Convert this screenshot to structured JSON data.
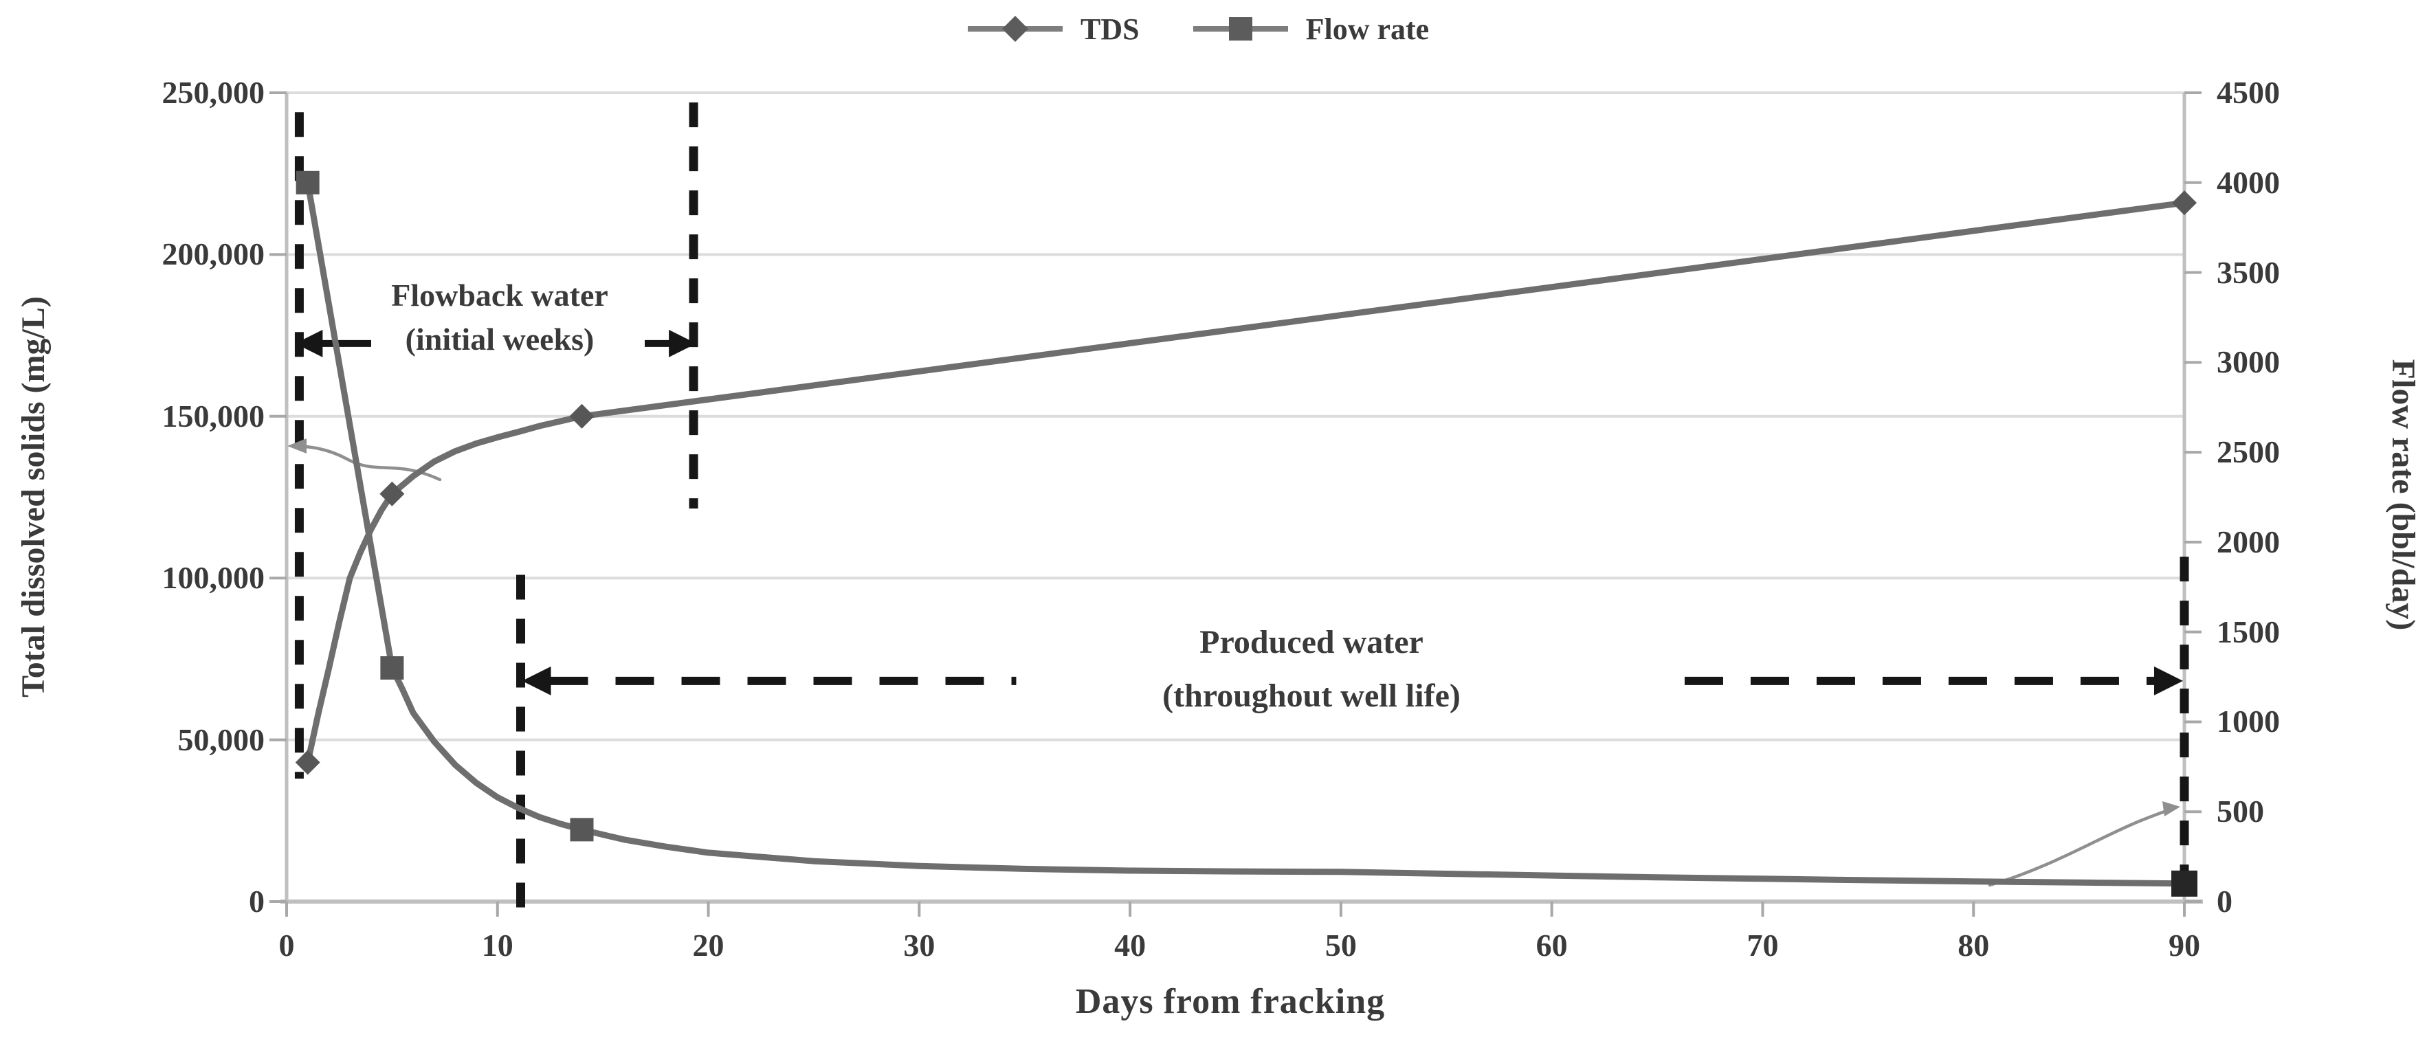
{
  "figure": {
    "description": "Dual-axis line chart of TDS and flow rate versus days from fracking",
    "background": "#ffffff",
    "text_color": "#3a3a3a"
  },
  "legend": {
    "items": [
      {
        "label": "TDS",
        "marker": "diamond"
      },
      {
        "label": "Flow rate",
        "marker": "square"
      }
    ]
  },
  "axes": {
    "x": {
      "title": "Days from fracking",
      "min": 0,
      "max": 90,
      "ticks": [
        0,
        10,
        20,
        30,
        40,
        50,
        60,
        70,
        80,
        90
      ]
    },
    "y_left": {
      "title": "Total dissolved solids (mg/L)",
      "min": 0,
      "max": 250000,
      "tick_values": [
        0,
        50000,
        100000,
        150000,
        200000,
        250000
      ],
      "tick_labels": [
        "0",
        "50,000",
        "100,000",
        "150,000",
        "200,000",
        "250,000"
      ]
    },
    "y_right": {
      "title": "Flow rate (bbl/day)",
      "min": 0,
      "max": 4500,
      "tick_values": [
        0,
        500,
        1000,
        1500,
        2000,
        2500,
        3000,
        3500,
        4000,
        4500
      ],
      "tick_labels": [
        "0",
        "500",
        "1000",
        "1500",
        "2000",
        "2500",
        "3000",
        "3500",
        "4000",
        "4500"
      ]
    }
  },
  "chart_data": {
    "type": "line",
    "x": [
      1,
      5,
      14,
      90
    ],
    "xlabel": "Days from fracking",
    "ylabel_left": "Total dissolved solids (mg/L)",
    "ylabel_right": "Flow rate (bbl/day)",
    "xlim": [
      0,
      90
    ],
    "ylim_left": [
      0,
      250000
    ],
    "ylim_right": [
      0,
      4500
    ],
    "grid": "horizontal",
    "legend_position": "top-center",
    "series": [
      {
        "name": "TDS",
        "axis": "left",
        "marker": "diamond",
        "values": [
          43000,
          126000,
          150000,
          216000
        ],
        "curve": [
          [
            1,
            43000
          ],
          [
            1.5,
            58000
          ],
          [
            2,
            72000
          ],
          [
            2.5,
            86500
          ],
          [
            3,
            100000
          ],
          [
            3.5,
            108000
          ],
          [
            4,
            115000
          ],
          [
            4.5,
            121000
          ],
          [
            5,
            126000
          ],
          [
            6,
            131500
          ],
          [
            7,
            136000
          ],
          [
            8,
            139200
          ],
          [
            9,
            141600
          ],
          [
            10,
            143500
          ],
          [
            11,
            145200
          ],
          [
            12,
            147000
          ],
          [
            13,
            148500
          ],
          [
            14,
            150000
          ],
          [
            90,
            216000
          ]
        ]
      },
      {
        "name": "Flow rate",
        "axis": "right",
        "marker": "square",
        "values": [
          4000,
          1300,
          400,
          100
        ],
        "curve": [
          [
            1,
            4000
          ],
          [
            5,
            1300
          ],
          [
            5.5,
            1180
          ],
          [
            6,
            1050
          ],
          [
            7,
            890
          ],
          [
            8,
            760
          ],
          [
            9,
            660
          ],
          [
            10,
            580
          ],
          [
            11,
            520
          ],
          [
            12,
            470
          ],
          [
            13,
            432
          ],
          [
            14,
            400
          ],
          [
            16,
            345
          ],
          [
            18,
            305
          ],
          [
            20,
            272
          ],
          [
            25,
            225
          ],
          [
            30,
            198
          ],
          [
            35,
            182
          ],
          [
            40,
            172
          ],
          [
            45,
            168
          ],
          [
            50,
            165
          ],
          [
            55,
            155
          ],
          [
            60,
            145
          ],
          [
            65,
            135
          ],
          [
            70,
            127
          ],
          [
            75,
            119
          ],
          [
            80,
            112
          ],
          [
            85,
            106
          ],
          [
            90,
            100
          ]
        ]
      }
    ],
    "colors": {
      "line": "#6e6e6e",
      "marker": "#575757",
      "flow_last_marker": "#262626",
      "gridline": "#dcdcdc",
      "axis_line": "#bfbfbf",
      "annotation": "#161616",
      "leader": "#8f8f8f"
    }
  },
  "annotations": {
    "flowback": {
      "line1": "Flowback water",
      "line2": "(initial weeks)",
      "v_left_day": 0.6,
      "v_left_values": [
        244000,
        38000
      ],
      "v_right_day": 19.3,
      "v_right_values": [
        247000,
        121500
      ],
      "arrow_value": 172500,
      "arrow_span_days": [
        0.6,
        19.3
      ]
    },
    "produced": {
      "line1": "Produced water",
      "line2": "(throughout well life)",
      "v_left_day": 11.1,
      "v_left_values": [
        101000,
        -2800
      ],
      "v_right_day": 90,
      "v_right_values": [
        106600,
        2500
      ],
      "dash_value": 68200,
      "left_dash_days": [
        11.1,
        34.6
      ],
      "right_dash_days": [
        66.3,
        90
      ]
    },
    "leaders": {
      "tds_points_to": "left-axis",
      "flow_points_to": "right-axis"
    }
  }
}
